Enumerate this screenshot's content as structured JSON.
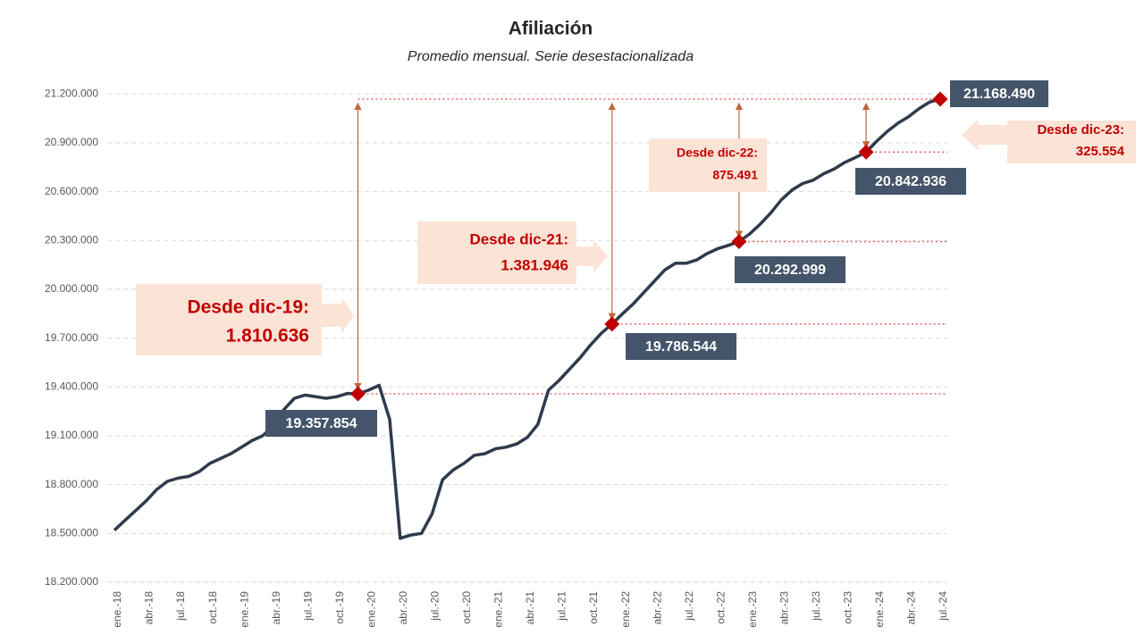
{
  "chart_data": {
    "type": "line",
    "title": "Afiliación",
    "subtitle": "Promedio mensual. Serie desestacionalizada",
    "categories": [
      "ene.-18",
      null,
      null,
      "abr.-18",
      null,
      null,
      "jul.-18",
      null,
      null,
      "oct.-18",
      null,
      null,
      "ene.-19",
      null,
      null,
      "abr.-19",
      null,
      null,
      "jul.-19",
      null,
      null,
      "oct.-19",
      null,
      null,
      "ene.-20",
      null,
      null,
      "abr.-20",
      null,
      null,
      "jul.-20",
      null,
      null,
      "oct.-20",
      null,
      null,
      "ene.-21",
      null,
      null,
      "abr.-21",
      null,
      null,
      "jul.-21",
      null,
      null,
      "oct.-21",
      null,
      null,
      "ene.-22",
      null,
      null,
      "abr.-22",
      null,
      null,
      "jul.-22",
      null,
      null,
      "oct.-22",
      null,
      null,
      "ene.-23",
      null,
      null,
      "abr.-23",
      null,
      null,
      "jul.-23",
      null,
      null,
      "oct.-23",
      null,
      null,
      "ene.-24",
      null,
      null,
      "abr.-24",
      null,
      null,
      "jul.-24"
    ],
    "series": [
      {
        "name": "Afiliación",
        "color": "#2f3b4c",
        "values": [
          18520000,
          18580000,
          18640000,
          18700000,
          18770000,
          18820000,
          18840000,
          18850000,
          18880000,
          18930000,
          18960000,
          18990000,
          19030000,
          19070000,
          19100000,
          19160000,
          19260000,
          19330000,
          19350000,
          19340000,
          19330000,
          19340000,
          19360000,
          19357854,
          19380000,
          19410000,
          19200000,
          18470000,
          18490000,
          18500000,
          18620000,
          18830000,
          18890000,
          18930000,
          18980000,
          18990000,
          19020000,
          19030000,
          19050000,
          19090000,
          19170000,
          19380000,
          19440000,
          19510000,
          19580000,
          19660000,
          19730000,
          19786544,
          19850000,
          19910000,
          19980000,
          20050000,
          20120000,
          20160000,
          20160000,
          20180000,
          20220000,
          20250000,
          20270000,
          20292999,
          20340000,
          20400000,
          20470000,
          20550000,
          20610000,
          20650000,
          20670000,
          20710000,
          20740000,
          20780000,
          20810000,
          20842936,
          20910000,
          20970000,
          21020000,
          21060000,
          21110000,
          21150000,
          21168490
        ],
        "value_labels": [
          null,
          null,
          null,
          null,
          null,
          null,
          null,
          null,
          null,
          null,
          null,
          null,
          null,
          null,
          null,
          null,
          null,
          null,
          null,
          null,
          null,
          null,
          null,
          "19.357.854",
          null,
          null,
          null,
          null,
          null,
          null,
          null,
          null,
          null,
          null,
          null,
          null,
          null,
          null,
          null,
          null,
          null,
          null,
          null,
          null,
          null,
          null,
          null,
          "19.786.544",
          null,
          null,
          null,
          null,
          null,
          null,
          null,
          null,
          null,
          null,
          null,
          "20.292.999",
          null,
          null,
          null,
          null,
          null,
          null,
          null,
          null,
          null,
          null,
          null,
          "20.842.936",
          null,
          null,
          null,
          null,
          null,
          null,
          "21.168.490"
        ]
      }
    ],
    "marker_color": "#c00000",
    "ylim": [
      18200000,
      21300000
    ],
    "yticks": [
      {
        "value": 18200000,
        "label": "18.200.000"
      },
      {
        "value": 18500000,
        "label": "18.500.000"
      },
      {
        "value": 18800000,
        "label": "18.800.000"
      },
      {
        "value": 19100000,
        "label": "19.100.000"
      },
      {
        "value": 19400000,
        "label": "19.400.000"
      },
      {
        "value": 19700000,
        "label": "19.700.000"
      },
      {
        "value": 20000000,
        "label": "20.000.000"
      },
      {
        "value": 20300000,
        "label": "20.300.000"
      },
      {
        "value": 20600000,
        "label": "20.600.000"
      },
      {
        "value": 20900000,
        "label": "20.900.000"
      },
      {
        "value": 21200000,
        "label": "21.200.000"
      }
    ],
    "grid": true,
    "annotations": [
      {
        "title": "Desde dic-19:",
        "text": "1.810.636"
      },
      {
        "title": "Desde dic-21:",
        "text": "1.381.946"
      },
      {
        "title": "Desde dic-22:",
        "text": "875.491"
      },
      {
        "title": "Desde dic-23:",
        "text": "325.554"
      }
    ]
  }
}
